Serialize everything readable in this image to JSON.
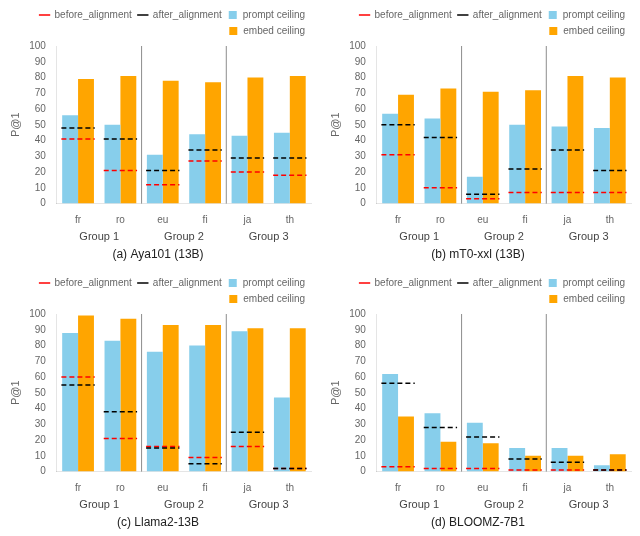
{
  "chart_data": [
    {
      "type": "bar",
      "title": "(a) Aya101 (13B)",
      "categories": [
        "fr",
        "ro",
        "eu",
        "fi",
        "ja",
        "th"
      ],
      "groups": [
        "Group 1",
        "Group 2",
        "Group 3"
      ],
      "series": [
        {
          "name": "before_alignment",
          "type": "line",
          "line_style": "dashed",
          "color": "red",
          "values": [
            41,
            21,
            12,
            27,
            20,
            18
          ]
        },
        {
          "name": "after_alignment",
          "type": "line",
          "line_style": "dashed",
          "color": "black",
          "values": [
            48,
            41,
            21,
            34,
            29,
            29
          ]
        },
        {
          "name": "prompt ceiling",
          "type": "bar",
          "color": "#87CEEB",
          "values": [
            56,
            50,
            31,
            44,
            43,
            45
          ]
        },
        {
          "name": "embed ceiling",
          "type": "bar",
          "color": "#FFA500",
          "values": [
            79,
            81,
            78,
            77,
            80,
            81
          ]
        }
      ],
      "ylabel": "P@1",
      "ylim": [
        0,
        100
      ],
      "yticks": [
        0,
        10,
        20,
        30,
        40,
        50,
        60,
        70,
        80,
        90,
        100
      ],
      "grid": false,
      "legend": "upper right"
    },
    {
      "type": "bar",
      "title": "(b) mT0-xxl (13B)",
      "categories": [
        "fr",
        "ro",
        "eu",
        "fi",
        "ja",
        "th"
      ],
      "groups": [
        "Group 1",
        "Group 2",
        "Group 3"
      ],
      "series": [
        {
          "name": "before_alignment",
          "type": "line",
          "line_style": "dashed",
          "color": "red",
          "values": [
            31,
            10,
            3,
            7,
            7,
            7
          ]
        },
        {
          "name": "after_alignment",
          "type": "line",
          "line_style": "dashed",
          "color": "black",
          "values": [
            50,
            42,
            6,
            22,
            34,
            21
          ]
        },
        {
          "name": "prompt ceiling",
          "type": "bar",
          "color": "#87CEEB",
          "values": [
            57,
            54,
            17,
            50,
            49,
            48
          ]
        },
        {
          "name": "embed ceiling",
          "type": "bar",
          "color": "#FFA500",
          "values": [
            69,
            73,
            71,
            72,
            81,
            80
          ]
        }
      ],
      "ylabel": "P@1",
      "ylim": [
        0,
        100
      ],
      "yticks": [
        0,
        10,
        20,
        30,
        40,
        50,
        60,
        70,
        80,
        90,
        100
      ],
      "grid": false,
      "legend": "upper right"
    },
    {
      "type": "bar",
      "title": "(c) Llama2-13B",
      "categories": [
        "fr",
        "ro",
        "eu",
        "fi",
        "ja",
        "th"
      ],
      "groups": [
        "Group 1",
        "Group 2",
        "Group 3"
      ],
      "series": [
        {
          "name": "before_alignment",
          "type": "line",
          "line_style": "dashed",
          "color": "red",
          "values": [
            60,
            21,
            16,
            9,
            16,
            2
          ]
        },
        {
          "name": "after_alignment",
          "type": "line",
          "line_style": "dashed",
          "color": "black",
          "values": [
            55,
            38,
            15,
            5,
            25,
            2
          ]
        },
        {
          "name": "prompt ceiling",
          "type": "bar",
          "color": "#87CEEB",
          "values": [
            88,
            83,
            76,
            80,
            89,
            47
          ]
        },
        {
          "name": "embed ceiling",
          "type": "bar",
          "color": "#FFA500",
          "values": [
            99,
            97,
            93,
            93,
            91,
            91
          ]
        }
      ],
      "ylabel": "P@1",
      "ylim": [
        0,
        100
      ],
      "yticks": [
        0,
        10,
        20,
        30,
        40,
        50,
        60,
        70,
        80,
        90,
        100
      ],
      "grid": false,
      "legend": "upper right"
    },
    {
      "type": "bar",
      "title": "(d) BLOOMZ-7B1",
      "categories": [
        "fr",
        "ro",
        "eu",
        "fi",
        "ja",
        "th"
      ],
      "groups": [
        "Group 1",
        "Group 2",
        "Group 3"
      ],
      "series": [
        {
          "name": "before_alignment",
          "type": "line",
          "line_style": "dashed",
          "color": "red",
          "values": [
            3,
            2,
            2,
            1,
            1,
            1
          ]
        },
        {
          "name": "after_alignment",
          "type": "line",
          "line_style": "dashed",
          "color": "black",
          "values": [
            56,
            28,
            22,
            8,
            6,
            1
          ]
        },
        {
          "name": "prompt ceiling",
          "type": "bar",
          "color": "#87CEEB",
          "values": [
            62,
            37,
            31,
            15,
            15,
            4
          ]
        },
        {
          "name": "embed ceiling",
          "type": "bar",
          "color": "#FFA500",
          "values": [
            35,
            19,
            18,
            10,
            10,
            11
          ]
        }
      ],
      "ylabel": "P@1",
      "ylim": [
        0,
        100
      ],
      "yticks": [
        0,
        10,
        20,
        30,
        40,
        50,
        60,
        70,
        80,
        90,
        100
      ],
      "grid": false,
      "legend": "upper right"
    }
  ]
}
